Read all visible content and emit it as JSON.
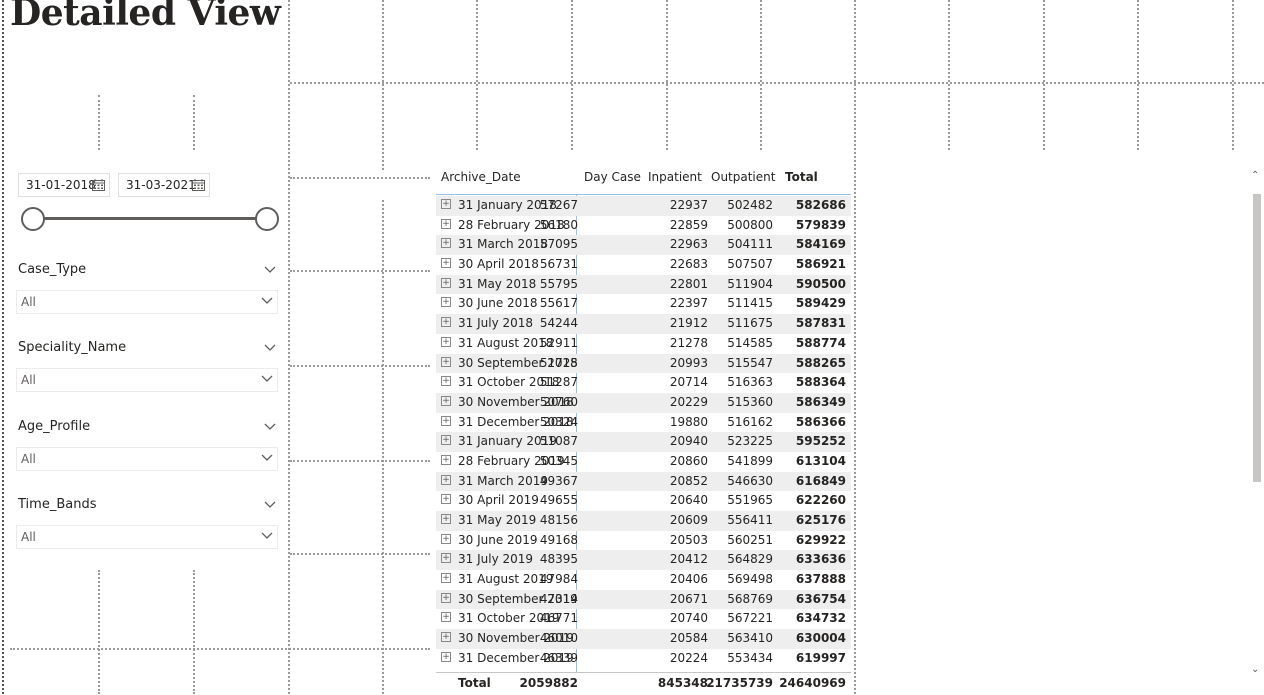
{
  "page": {
    "title": "Detailed View"
  },
  "date_slicer": {
    "start": "31-01-2018",
    "end": "31-03-2021",
    "calendar_icon": "calendar-icon"
  },
  "slicers": [
    {
      "title": "Case_Type",
      "value": "All"
    },
    {
      "title": "Speciality_Name",
      "value": "All"
    },
    {
      "title": "Age_Profile",
      "value": "All"
    },
    {
      "title": "Time_Bands",
      "value": "All"
    }
  ],
  "matrix": {
    "headers": {
      "date": "Archive_Date",
      "day_case": "Day Case",
      "inpatient": "Inpatient",
      "outpatient": "Outpatient",
      "total": "Total"
    },
    "rows": [
      {
        "date": "31 January 2018",
        "day_case": "57267",
        "inpatient": "22937",
        "outpatient": "502482",
        "total": "582686"
      },
      {
        "date": "28 February 2018",
        "day_case": "56180",
        "inpatient": "22859",
        "outpatient": "500800",
        "total": "579839"
      },
      {
        "date": "31 March 2018",
        "day_case": "57095",
        "inpatient": "22963",
        "outpatient": "504111",
        "total": "584169"
      },
      {
        "date": "30 April 2018",
        "day_case": "56731",
        "inpatient": "22683",
        "outpatient": "507507",
        "total": "586921"
      },
      {
        "date": "31 May 2018",
        "day_case": "55795",
        "inpatient": "22801",
        "outpatient": "511904",
        "total": "590500"
      },
      {
        "date": "30 June 2018",
        "day_case": "55617",
        "inpatient": "22397",
        "outpatient": "511415",
        "total": "589429"
      },
      {
        "date": "31 July 2018",
        "day_case": "54244",
        "inpatient": "21912",
        "outpatient": "511675",
        "total": "587831"
      },
      {
        "date": "31 August 2018",
        "day_case": "52911",
        "inpatient": "21278",
        "outpatient": "514585",
        "total": "588774"
      },
      {
        "date": "30 September 2018",
        "day_case": "51725",
        "inpatient": "20993",
        "outpatient": "515547",
        "total": "588265"
      },
      {
        "date": "31 October 2018",
        "day_case": "51287",
        "inpatient": "20714",
        "outpatient": "516363",
        "total": "588364"
      },
      {
        "date": "30 November 2018",
        "day_case": "50760",
        "inpatient": "20229",
        "outpatient": "515360",
        "total": "586349"
      },
      {
        "date": "31 December 2018",
        "day_case": "50324",
        "inpatient": "19880",
        "outpatient": "516162",
        "total": "586366"
      },
      {
        "date": "31 January 2019",
        "day_case": "51087",
        "inpatient": "20940",
        "outpatient": "523225",
        "total": "595252"
      },
      {
        "date": "28 February 2019",
        "day_case": "50345",
        "inpatient": "20860",
        "outpatient": "541899",
        "total": "613104"
      },
      {
        "date": "31 March 2019",
        "day_case": "49367",
        "inpatient": "20852",
        "outpatient": "546630",
        "total": "616849"
      },
      {
        "date": "30 April 2019",
        "day_case": "49655",
        "inpatient": "20640",
        "outpatient": "551965",
        "total": "622260"
      },
      {
        "date": "31 May 2019",
        "day_case": "48156",
        "inpatient": "20609",
        "outpatient": "556411",
        "total": "625176"
      },
      {
        "date": "30 June 2019",
        "day_case": "49168",
        "inpatient": "20503",
        "outpatient": "560251",
        "total": "629922"
      },
      {
        "date": "31 July 2019",
        "day_case": "48395",
        "inpatient": "20412",
        "outpatient": "564829",
        "total": "633636"
      },
      {
        "date": "31 August 2019",
        "day_case": "47984",
        "inpatient": "20406",
        "outpatient": "569498",
        "total": "637888"
      },
      {
        "date": "30 September 2019",
        "day_case": "47314",
        "inpatient": "20671",
        "outpatient": "568769",
        "total": "636754"
      },
      {
        "date": "31 October 2019",
        "day_case": "46771",
        "inpatient": "20740",
        "outpatient": "567221",
        "total": "634732"
      },
      {
        "date": "30 November 2019",
        "day_case": "46010",
        "inpatient": "20584",
        "outpatient": "563410",
        "total": "630004"
      },
      {
        "date": "31 December 2019",
        "day_case": "46339",
        "inpatient": "20224",
        "outpatient": "553434",
        "total": "619997"
      }
    ],
    "total": {
      "label": "Total",
      "day_case": "2059882",
      "inpatient": "845348",
      "outpatient": "21735739",
      "total": "24640969"
    },
    "expand_icon": "expand-plus-icon"
  },
  "colors": {
    "accent": "#9bc0e6",
    "row_alt": "#eeeeee",
    "text": "#252423"
  }
}
